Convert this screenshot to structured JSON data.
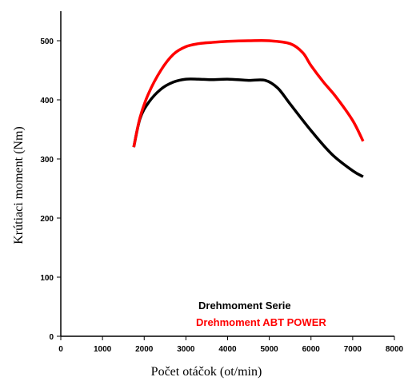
{
  "chart_data": {
    "type": "line",
    "title": "",
    "xlabel": "Počet otáčok (ot/min)",
    "ylabel": "Krútiaci moment (Nm)",
    "xlim": [
      0,
      8000
    ],
    "ylim": [
      0,
      550
    ],
    "x_ticks": [
      "0",
      "1000",
      "2000",
      "3000",
      "4000",
      "5000",
      "6000",
      "7000",
      "8000"
    ],
    "y_ticks": [
      "0",
      "100",
      "200",
      "300",
      "400",
      "500"
    ],
    "grid": false,
    "legend_position": "bottom-right",
    "series": [
      {
        "name": "Drehmoment Serie",
        "color": "#000000",
        "x": [
          1750,
          1900,
          2100,
          2400,
          2700,
          3000,
          3300,
          3600,
          4000,
          4500,
          4900,
          5200,
          5500,
          6000,
          6500,
          7000,
          7250
        ],
        "y": [
          320,
          368,
          395,
          418,
          430,
          435,
          435,
          434,
          435,
          433,
          433,
          420,
          393,
          348,
          308,
          280,
          270
        ]
      },
      {
        "name": "Drehmoment ABT POWER",
        "color": "#ff0000",
        "x": [
          1750,
          1900,
          2100,
          2400,
          2700,
          3000,
          3300,
          3600,
          4000,
          4500,
          5000,
          5500,
          5800,
          6000,
          6300,
          6600,
          7000,
          7250
        ],
        "y": [
          320,
          370,
          410,
          450,
          477,
          490,
          495,
          497,
          499,
          500,
          500,
          495,
          480,
          458,
          430,
          405,
          365,
          330
        ]
      }
    ]
  }
}
